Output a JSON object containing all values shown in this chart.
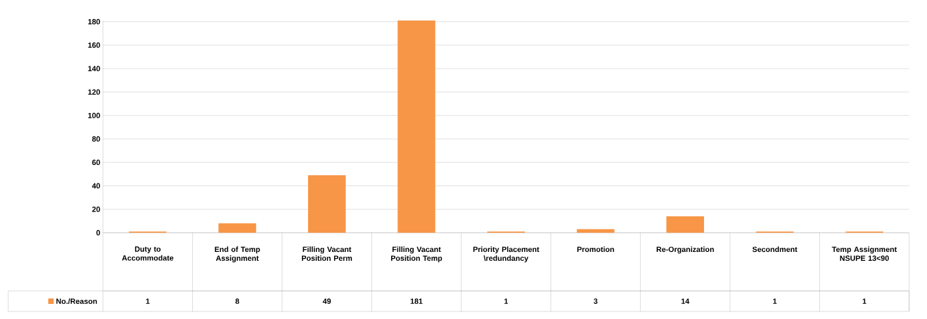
{
  "chart_data": {
    "type": "bar",
    "categories": [
      "Duty to Accommodate",
      "End of Temp Assignment",
      "Filling Vacant Position Perm",
      "Filling Vacant Position Temp",
      "Priority Placement \\redundancy",
      "Promotion",
      "Re-Organization",
      "Secondment",
      "Temp Assignment NSUPE 13<90"
    ],
    "series": [
      {
        "name": "No./Reason",
        "color": "#f79646",
        "values": [
          1,
          8,
          49,
          181,
          1,
          3,
          14,
          1,
          1
        ]
      }
    ],
    "ylim": [
      0,
      181
    ],
    "yticks": [
      0,
      20,
      40,
      60,
      80,
      100,
      120,
      140,
      160,
      180
    ],
    "grid": "y",
    "legend": "bottom left",
    "data_labels": true
  }
}
